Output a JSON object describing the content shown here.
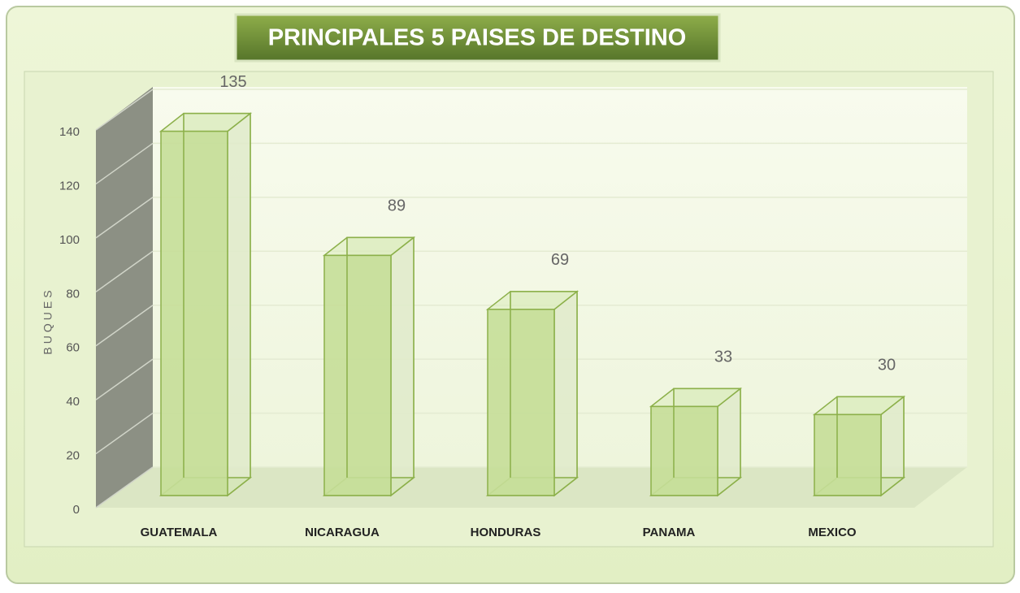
{
  "chart_data": {
    "type": "bar3d",
    "title": "PRINCIPALES 5 PAISES DE DESTINO",
    "ylabel": "BUQUES",
    "categories": [
      "GUATEMALA",
      "NICARAGUA",
      "HONDURAS",
      "PANAMA",
      "MEXICO"
    ],
    "values": [
      135,
      89,
      69,
      33,
      30
    ],
    "color": "#c5de98",
    "ylim": [
      0,
      140
    ],
    "yticks": [
      0,
      20,
      40,
      60,
      80,
      100,
      120,
      140
    ],
    "grid": true
  }
}
